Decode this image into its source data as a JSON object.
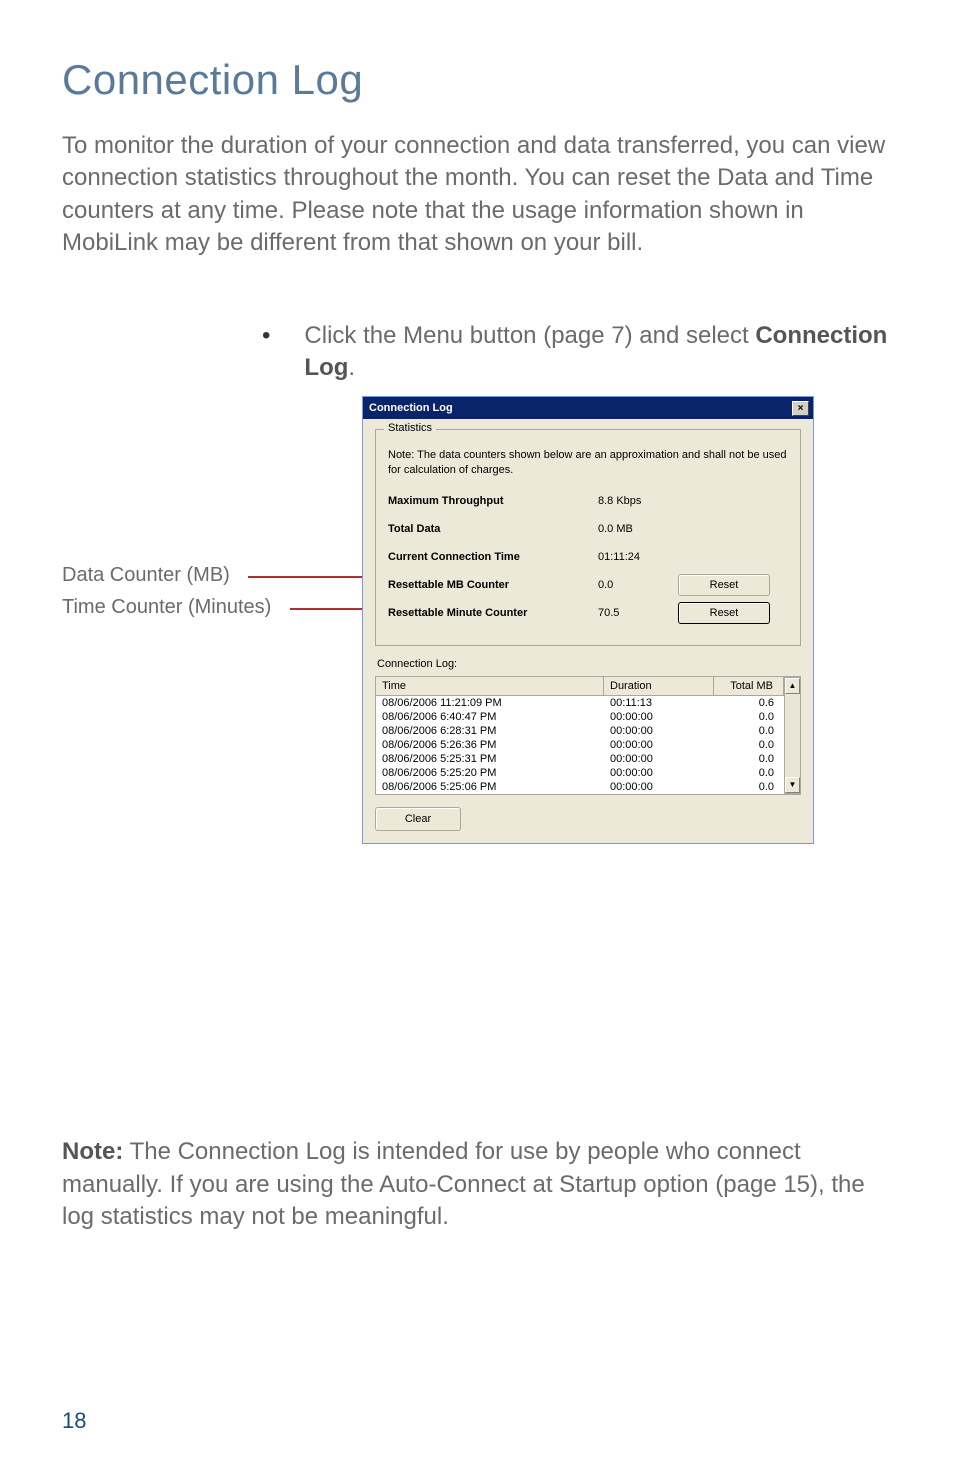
{
  "title": "Connection Log",
  "intro": "To monitor the duration of your connection and data transferred, you can view connection statistics throughout the month. You can reset the Data and Time counters at any time. Please note that the usage information shown in MobiLink may be different from that shown on your bill.",
  "bullet": {
    "prefix": "Click the Menu button (page 7) and select ",
    "bold": "Connection Log",
    "suffix": "."
  },
  "callouts": {
    "mb": "Data Counter (MB)",
    "min": "Time Counter (Minutes)"
  },
  "dialog": {
    "title": "Connection Log",
    "close": "×",
    "group_title": "Statistics",
    "note": "Note: The data counters shown below are an approximation and shall not be used for calculation of charges.",
    "stats": {
      "max_throughput_label": "Maximum Throughput",
      "max_throughput_value": "8.8 Kbps",
      "total_data_label": "Total Data",
      "total_data_value": "0.0 MB",
      "conn_time_label": "Current Connection Time",
      "conn_time_value": "01:11:24",
      "mb_counter_label": "Resettable MB Counter",
      "mb_counter_value": "0.0",
      "min_counter_label": "Resettable Minute Counter",
      "min_counter_value": "70.5"
    },
    "reset_label": "Reset",
    "log_label": "Connection Log:",
    "columns": {
      "time": "Time",
      "duration": "Duration",
      "total_mb": "Total MB"
    },
    "rows": [
      {
        "time": "08/06/2006 11:21:09 PM",
        "duration": "00:11:13",
        "mb": "0.6"
      },
      {
        "time": "08/06/2006 6:40:47 PM",
        "duration": "00:00:00",
        "mb": "0.0"
      },
      {
        "time": "08/06/2006 6:28:31 PM",
        "duration": "00:00:00",
        "mb": "0.0"
      },
      {
        "time": "08/06/2006 5:26:36 PM",
        "duration": "00:00:00",
        "mb": "0.0"
      },
      {
        "time": "08/06/2006 5:25:31 PM",
        "duration": "00:00:00",
        "mb": "0.0"
      },
      {
        "time": "08/06/2006 5:25:20 PM",
        "duration": "00:00:00",
        "mb": "0.0"
      },
      {
        "time": "08/06/2006 5:25:06 PM",
        "duration": "00:00:00",
        "mb": "0.0"
      }
    ],
    "clear_label": "Clear",
    "scroll_up": "▲",
    "scroll_down": "▼"
  },
  "note": {
    "bold": "Note:",
    "text": " The Connection Log is intended for use by people who connect manually. If you are using the Auto-Connect at Startup option (page 15), the log statistics may not be meaningful."
  },
  "page_number": "18",
  "colors": {
    "title": "#5a7a9b",
    "body": "#6b6b6b",
    "callout_line": "#b03030",
    "titlebar": "#0a246a",
    "dialog_bg": "#ece9d8"
  }
}
